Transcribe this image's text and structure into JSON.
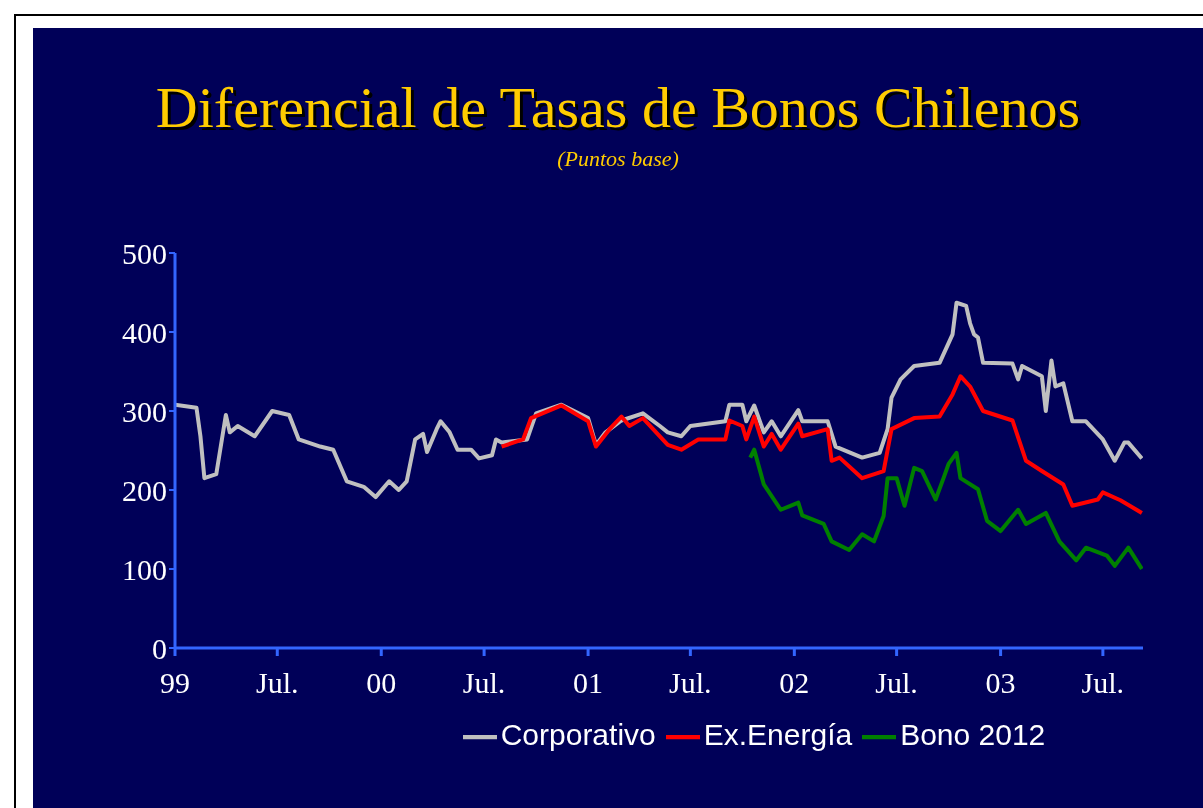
{
  "chart_data": {
    "type": "line",
    "title": "Diferencial de Tasas de Bonos Chilenos",
    "subtitle": "(Puntos base)",
    "xlim": [
      "1999-01-01",
      "2003-09-10"
    ],
    "xticks": [
      {
        "value": "1999-01-01",
        "label": "99"
      },
      {
        "value": "1999-07-01",
        "label": "Jul."
      },
      {
        "value": "2000-01-01",
        "label": "00"
      },
      {
        "value": "2000-07-01",
        "label": "Jul."
      },
      {
        "value": "2001-01-01",
        "label": "01"
      },
      {
        "value": "2001-07-01",
        "label": "Jul."
      },
      {
        "value": "2002-01-01",
        "label": "02"
      },
      {
        "value": "2002-07-01",
        "label": "Jul."
      },
      {
        "value": "2003-01-01",
        "label": "03"
      },
      {
        "value": "2003-07-01",
        "label": "Jul."
      }
    ],
    "ylim": [
      0,
      500
    ],
    "yticks": [
      0,
      100,
      200,
      300,
      400,
      500
    ],
    "grid": false,
    "legend": "bottom",
    "marker": "none",
    "line_style": "solid",
    "series": [
      {
        "name": "Corporativo",
        "color": "#c0c0c0",
        "x": [
          "1999-01-01",
          "1999-02-08",
          "1999-02-15",
          "1999-02-22",
          "1999-03-15",
          "1999-04-01",
          "1999-04-08",
          "1999-04-22",
          "1999-05-22",
          "1999-06-22",
          "1999-07-22",
          "1999-08-08",
          "1999-09-15",
          "1999-10-08",
          "1999-11-01",
          "1999-12-01",
          "1999-12-22",
          "2000-01-15",
          "2000-02-01",
          "2000-02-15",
          "2000-03-01",
          "2000-03-15",
          "2000-03-22",
          "2000-04-08",
          "2000-04-15",
          "2000-05-01",
          "2000-05-15",
          "2000-06-08",
          "2000-06-22",
          "2000-07-15",
          "2000-07-22",
          "2000-08-01",
          "2000-09-15",
          "2000-10-01",
          "2000-11-15",
          "2001-01-01",
          "2001-01-15",
          "2001-02-01",
          "2001-03-01",
          "2001-04-08",
          "2001-05-08",
          "2001-05-22",
          "2001-06-15",
          "2001-07-01",
          "2001-09-01",
          "2001-09-08",
          "2001-10-01",
          "2001-10-08",
          "2001-10-22",
          "2001-11-08",
          "2001-11-22",
          "2001-12-08",
          "2002-01-08",
          "2002-01-15",
          "2002-03-01",
          "2002-03-15",
          "2002-05-01",
          "2002-06-01",
          "2002-06-15",
          "2002-06-22",
          "2002-07-08",
          "2002-08-01",
          "2002-09-15",
          "2002-10-08",
          "2002-10-15",
          "2002-11-01",
          "2002-11-08",
          "2002-11-15",
          "2002-11-22",
          "2002-12-01",
          "2003-01-22",
          "2003-02-01",
          "2003-02-08",
          "2003-03-15",
          "2003-03-22",
          "2003-04-01",
          "2003-04-08",
          "2003-04-22",
          "2003-05-08",
          "2003-06-01",
          "2003-07-01",
          "2003-07-22",
          "2003-08-08",
          "2003-08-15",
          "2003-09-08"
        ],
        "values": [
          308,
          304,
          268,
          215,
          220,
          295,
          273,
          281,
          268,
          300,
          295,
          264,
          255,
          251,
          211,
          204,
          191,
          211,
          200,
          211,
          264,
          271,
          248,
          277,
          287,
          273,
          251,
          251,
          240,
          244,
          264,
          260,
          264,
          297,
          308,
          291,
          257,
          273,
          288,
          297,
          281,
          273,
          268,
          281,
          287,
          308,
          308,
          287,
          307,
          273,
          287,
          268,
          301,
          287,
          287,
          255,
          241,
          247,
          277,
          317,
          340,
          357,
          361,
          397,
          437,
          433,
          411,
          397,
          393,
          361,
          360,
          340,
          357,
          344,
          300,
          364,
          331,
          335,
          287,
          287,
          264,
          237,
          260,
          260,
          240
        ]
      },
      {
        "name": "Ex.Energía",
        "color": "#ff0000",
        "x": [
          "2000-08-01",
          "2000-09-08",
          "2000-09-22",
          "2000-11-15",
          "2001-01-01",
          "2001-01-15",
          "2001-02-08",
          "2001-03-01",
          "2001-03-15",
          "2001-04-08",
          "2001-05-08",
          "2001-05-22",
          "2001-06-15",
          "2001-07-15",
          "2001-09-01",
          "2001-09-08",
          "2001-10-01",
          "2001-10-08",
          "2001-10-22",
          "2001-11-08",
          "2001-11-22",
          "2001-12-08",
          "2002-01-08",
          "2002-01-15",
          "2002-03-01",
          "2002-03-08",
          "2002-03-22",
          "2002-05-01",
          "2002-06-08",
          "2002-06-22",
          "2002-08-01",
          "2002-09-15",
          "2002-10-08",
          "2002-10-22",
          "2002-11-08",
          "2002-12-01",
          "2003-01-22",
          "2003-02-15",
          "2003-03-15",
          "2003-04-22",
          "2003-05-08",
          "2003-06-22",
          "2003-07-01",
          "2003-08-01",
          "2003-09-08"
        ],
        "values": [
          255,
          264,
          291,
          307,
          287,
          255,
          277,
          293,
          281,
          291,
          268,
          257,
          251,
          264,
          264,
          288,
          281,
          264,
          293,
          255,
          271,
          251,
          284,
          268,
          277,
          237,
          241,
          215,
          224,
          277,
          291,
          293,
          321,
          344,
          331,
          300,
          288,
          237,
          224,
          207,
          180,
          188,
          197,
          187,
          171
        ]
      },
      {
        "name": "Bono 2012",
        "color": "#008000",
        "x": [
          "2001-10-15",
          "2001-10-22",
          "2001-11-08",
          "2001-12-08",
          "2002-01-08",
          "2002-01-15",
          "2002-02-22",
          "2002-03-08",
          "2002-04-08",
          "2002-05-01",
          "2002-05-22",
          "2002-06-08",
          "2002-06-15",
          "2002-07-01",
          "2002-07-15",
          "2002-08-01",
          "2002-08-15",
          "2002-09-08",
          "2002-09-22",
          "2002-10-01",
          "2002-10-15",
          "2002-10-22",
          "2002-11-22",
          "2002-12-08",
          "2003-01-01",
          "2003-02-01",
          "2003-02-15",
          "2003-03-22",
          "2003-04-15",
          "2003-05-15",
          "2003-06-01",
          "2003-07-08",
          "2003-07-22",
          "2003-08-15",
          "2003-09-08"
        ],
        "values": [
          241,
          251,
          207,
          175,
          184,
          168,
          157,
          135,
          124,
          144,
          135,
          167,
          215,
          215,
          180,
          228,
          224,
          188,
          215,
          233,
          247,
          215,
          201,
          161,
          148,
          175,
          157,
          171,
          135,
          111,
          127,
          117,
          104,
          127,
          100
        ]
      }
    ]
  }
}
